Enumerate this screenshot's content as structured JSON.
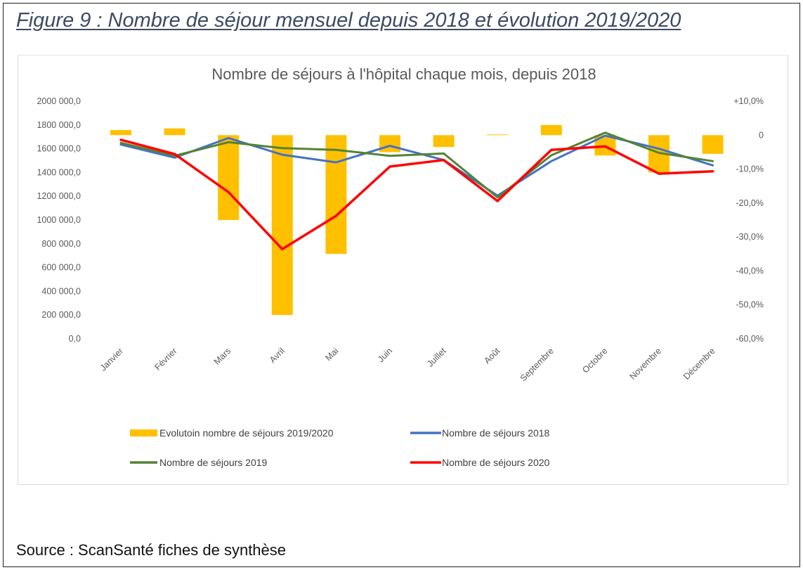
{
  "figure_title": "Figure 9 : Nombre de séjour mensuel depuis 2018 et évolution 2019/2020",
  "source": "Source : ScanSanté fiches de synthèse",
  "chart_data": {
    "type": "bar",
    "title": "Nombre de séjours à l'hôpital chaque mois, depuis 2018",
    "categories": [
      "Janvier",
      "Février",
      "Mars",
      "Avril",
      "Mai",
      "Juin",
      "Juillet",
      "Août",
      "Septembre",
      "Octobre",
      "Novembre",
      "Décembre"
    ],
    "y_left": {
      "ylim": [
        0,
        2000000
      ],
      "ticks": [
        0,
        200000,
        400000,
        600000,
        800000,
        1000000,
        1200000,
        1400000,
        1600000,
        1800000,
        2000000
      ],
      "tick_labels": [
        "0,0",
        "200 000,0",
        "400 000,0",
        "600 000,0",
        "800 000,0",
        "1000 000,0",
        "1200 000,0",
        "1400 000,0",
        "1600 000,0",
        "1800 000,0",
        "2000 000,0"
      ]
    },
    "y_right": {
      "ylim": [
        -60,
        10
      ],
      "ticks": [
        10,
        0,
        -10,
        -20,
        -30,
        -40,
        -50,
        -60
      ],
      "tick_labels": [
        "+10,0%",
        "0",
        "-10,0%",
        "-20,0%",
        "-30,0%",
        "-40,0%",
        "-50,0%",
        "-60,0%"
      ]
    },
    "bar_series": {
      "name": "Evolutoin nombre de séjours 2019/2020",
      "axis": "right",
      "color": "#ffc000",
      "values": [
        1.5,
        2.0,
        -25.0,
        -53.0,
        -35.0,
        -5.0,
        -3.5,
        0.2,
        3.0,
        -6.0,
        -11.0,
        -5.5
      ]
    },
    "line_series": [
      {
        "name": "Nombre de séjours 2018",
        "axis": "left",
        "color": "#4472c4",
        "values": [
          1635000,
          1525000,
          1690000,
          1550000,
          1485000,
          1625000,
          1505000,
          1205000,
          1495000,
          1710000,
          1600000,
          1460000
        ]
      },
      {
        "name": "Nombre de séjours 2019",
        "axis": "left",
        "color": "#548235",
        "values": [
          1650000,
          1540000,
          1655000,
          1605000,
          1590000,
          1540000,
          1560000,
          1190000,
          1545000,
          1735000,
          1565000,
          1495000
        ]
      },
      {
        "name": "Nombre de séjours 2020",
        "axis": "left",
        "color": "#ff0000",
        "values": [
          1675000,
          1555000,
          1235000,
          755000,
          1035000,
          1450000,
          1505000,
          1160000,
          1590000,
          1620000,
          1390000,
          1410000
        ]
      }
    ],
    "legend": "bottom",
    "grid": false
  }
}
